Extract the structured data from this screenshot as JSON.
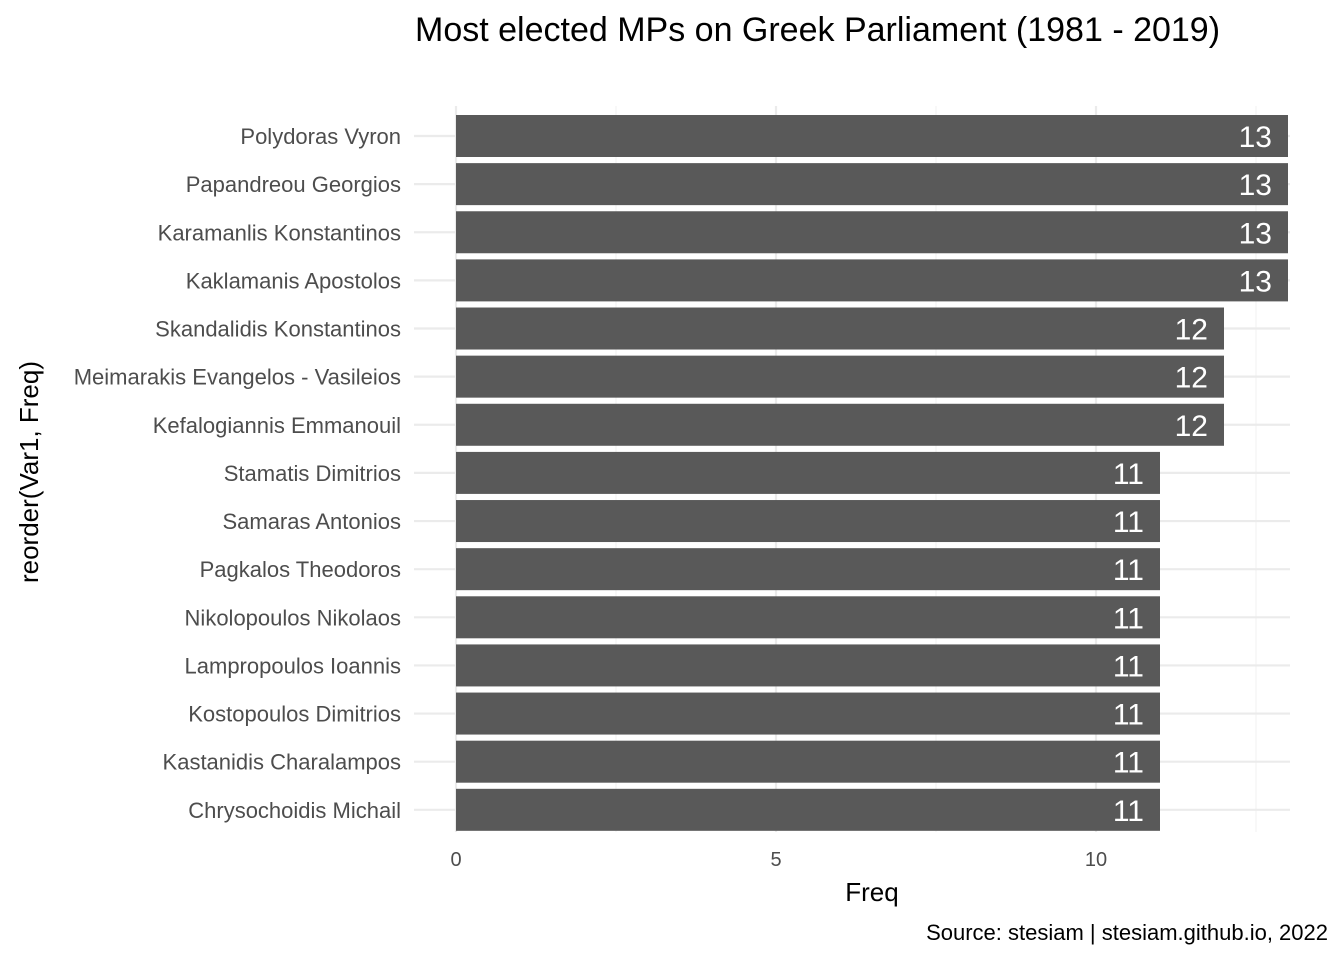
{
  "chart_data": {
    "type": "bar",
    "orientation": "horizontal",
    "title": "Most elected MPs on Greek Parliament (1981 - 2019)",
    "xlabel": "Freq",
    "ylabel": "reorder(Var1, Freq)",
    "caption": "Source: stesiam | stesiam.github.io, 2022",
    "categories": [
      "Polydoras Vyron",
      "Papandreou Georgios",
      "Karamanlis Konstantinos",
      "Kaklamanis Apostolos",
      "Skandalidis Konstantinos",
      "Meimarakis Evangelos - Vasileios",
      "Kefalogiannis Emmanouil",
      "Stamatis Dimitrios",
      "Samaras Antonios",
      "Pagkalos Theodoros",
      "Nikolopoulos Nikolaos",
      "Lampropoulos Ioannis",
      "Kostopoulos Dimitrios",
      "Kastanidis Charalampos",
      "Chrysochoidis Michail"
    ],
    "values": [
      13,
      13,
      13,
      13,
      12,
      12,
      12,
      11,
      11,
      11,
      11,
      11,
      11,
      11,
      11
    ],
    "x_ticks": [
      0,
      5,
      10
    ],
    "xlim": [
      0,
      13
    ],
    "grid": true,
    "legend": "none",
    "bar_color": "#595959",
    "label_color": "#ffffff"
  }
}
